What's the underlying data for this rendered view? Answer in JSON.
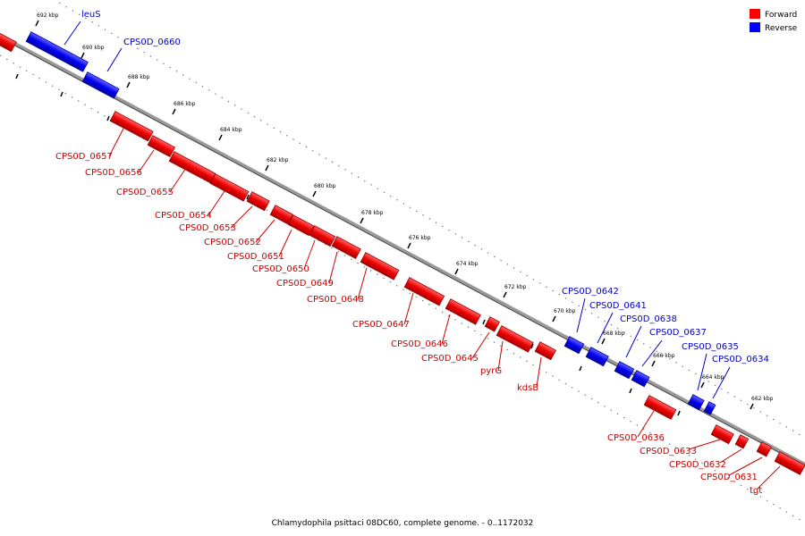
{
  "legend": [
    {
      "label": "Forward",
      "color": "#ff0000"
    },
    {
      "label": "Reverse",
      "color": "#0000ff"
    }
  ],
  "caption": "Chlamydophila psittaci 08DC60, complete genome. - 0..1172032",
  "colors": {
    "forward": "#ff0000",
    "reverse": "#0000ff",
    "forward_label": "#cc0000",
    "reverse_label": "#0000cc",
    "backbone": "#999999"
  },
  "tick_labels": [
    "692 kbp",
    "690 kbp",
    "688 kbp",
    "686 kbp",
    "684 kbp",
    "682 kbp",
    "680 kbp",
    "678 kbp",
    "676 kbp",
    "674 kbp",
    "672 kbp",
    "670 kbp",
    "668 kbp",
    "666 kbp",
    "664 kbp",
    "662 kbp"
  ],
  "genes": [
    {
      "name": "leuS",
      "strand": "reverse"
    },
    {
      "name": "CPS0D_0660",
      "strand": "reverse"
    },
    {
      "name": "CPS0D_0657",
      "strand": "forward"
    },
    {
      "name": "CPS0D_0656",
      "strand": "forward"
    },
    {
      "name": "CPS0D_0655",
      "strand": "forward"
    },
    {
      "name": "CPS0D_0654",
      "strand": "forward"
    },
    {
      "name": "CPS0D_0653",
      "strand": "forward"
    },
    {
      "name": "CPS0D_0652",
      "strand": "forward"
    },
    {
      "name": "CPS0D_0651",
      "strand": "forward"
    },
    {
      "name": "CPS0D_0650",
      "strand": "forward"
    },
    {
      "name": "CPS0D_0649",
      "strand": "forward"
    },
    {
      "name": "CPS0D_0648",
      "strand": "forward"
    },
    {
      "name": "CPS0D_0647",
      "strand": "forward"
    },
    {
      "name": "CPS0D_0646",
      "strand": "forward"
    },
    {
      "name": "CPS0D_0645",
      "strand": "forward"
    },
    {
      "name": "pyrG",
      "strand": "forward"
    },
    {
      "name": "kdsB",
      "strand": "forward"
    },
    {
      "name": "CPS0D_0642",
      "strand": "reverse"
    },
    {
      "name": "CPS0D_0641",
      "strand": "reverse"
    },
    {
      "name": "CPS0D_0638",
      "strand": "reverse"
    },
    {
      "name": "CPS0D_0637",
      "strand": "reverse"
    },
    {
      "name": "CPS0D_0635",
      "strand": "reverse"
    },
    {
      "name": "CPS0D_0634",
      "strand": "reverse"
    },
    {
      "name": "CPS0D_0636",
      "strand": "forward"
    },
    {
      "name": "CPS0D_0633",
      "strand": "forward"
    },
    {
      "name": "CPS0D_0632",
      "strand": "forward"
    },
    {
      "name": "CPS0D_0631",
      "strand": "forward"
    },
    {
      "name": "tgt",
      "strand": "forward"
    }
  ]
}
